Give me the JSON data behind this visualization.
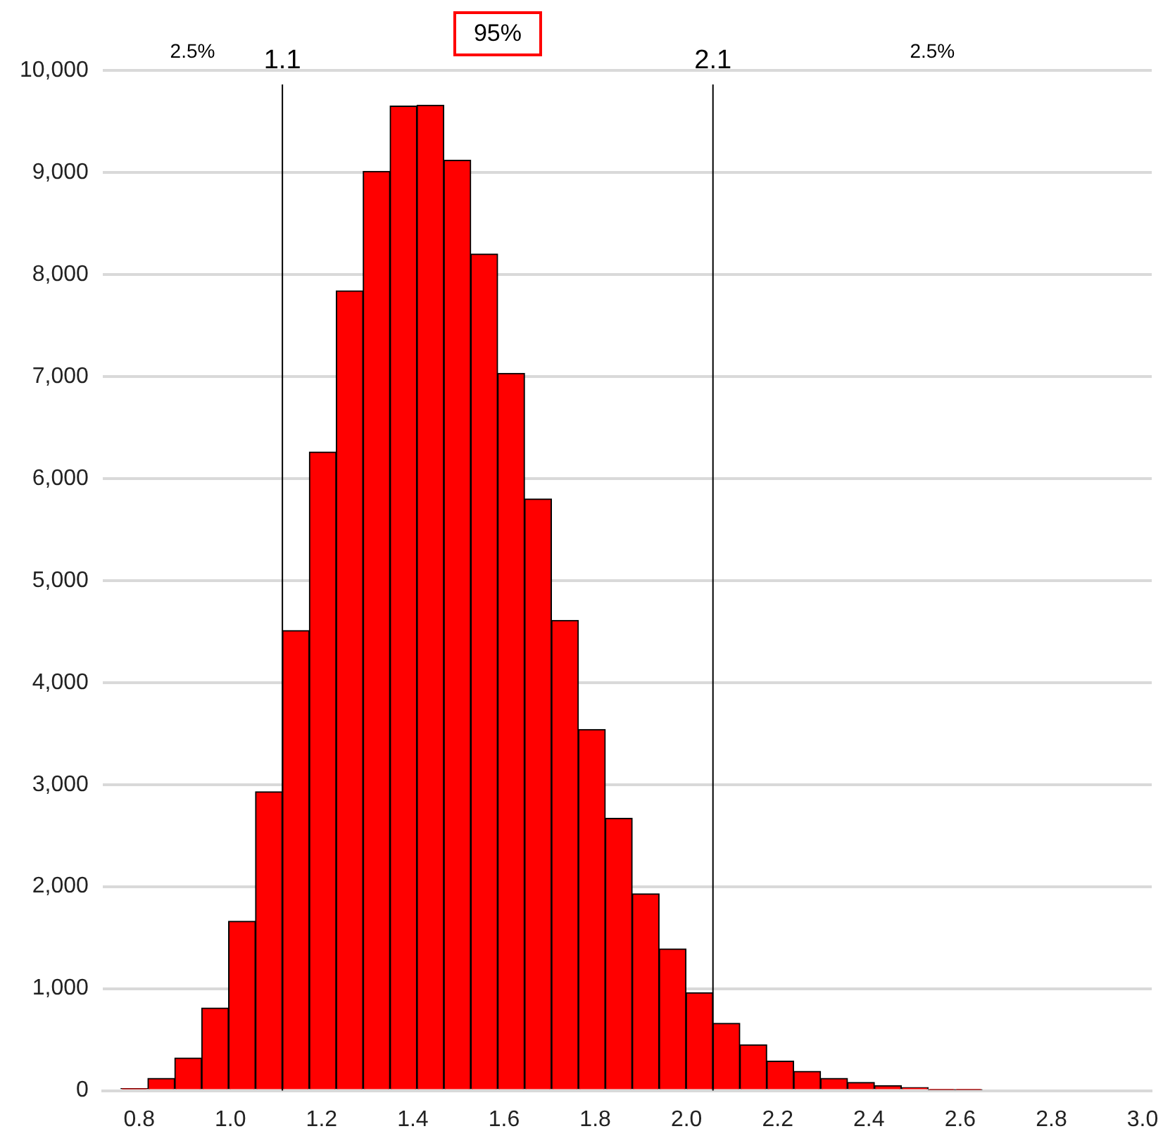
{
  "chart_data": {
    "type": "histogram",
    "color": "#ff0000",
    "bins": [
      0.76,
      0.819,
      0.878,
      0.937,
      0.996,
      1.055,
      1.114,
      1.173,
      1.232,
      1.291,
      1.35,
      1.409,
      1.468,
      1.527,
      1.586,
      1.645,
      1.704,
      1.763,
      1.822,
      1.881,
      1.94,
      1.999,
      2.058,
      2.117,
      2.176,
      2.235,
      2.294,
      2.353,
      2.412,
      2.471,
      2.53,
      2.589,
      2.648
    ],
    "values": [
      20,
      120,
      320,
      810,
      1660,
      2930,
      4510,
      6260,
      7840,
      9010,
      9650,
      9660,
      9120,
      8200,
      7030,
      5800,
      4610,
      3540,
      2670,
      1930,
      1390,
      960,
      660,
      450,
      290,
      190,
      120,
      80,
      50,
      30,
      10,
      10
    ],
    "xlim": [
      0.72,
      3.02
    ],
    "xticks": [
      0.8,
      {
        "value": 1,
        "label": "1.0"
      },
      1.2,
      1.4,
      1.6,
      1.8,
      {
        "value": 2,
        "label": "2.0"
      },
      2.2,
      2.4,
      2.6,
      2.8,
      {
        "value": 3,
        "label": "3.0"
      }
    ],
    "ylim": [
      0,
      10000
    ],
    "yticks": [
      0,
      {
        "value": 1000,
        "label": "1,000"
      },
      {
        "value": 2000,
        "label": "2,000"
      },
      {
        "value": 3000,
        "label": "3,000"
      },
      {
        "value": 4000,
        "label": "4,000"
      },
      {
        "value": 5000,
        "label": "5,000"
      },
      {
        "value": 6000,
        "label": "6,000"
      },
      {
        "value": 7000,
        "label": "7,000"
      },
      {
        "value": 8000,
        "label": "8,000"
      },
      {
        "value": 9000,
        "label": "9,000"
      },
      {
        "value": 10000,
        "label": "10,000"
      }
    ],
    "grid": "y",
    "legend": false,
    "ref_lines": [
      {
        "axis": "x",
        "value": 1.114,
        "label": "1.1",
        "color": "#000000"
      },
      {
        "axis": "x",
        "value": 2.058,
        "label": "2.1",
        "color": "#000000"
      }
    ],
    "annotations": [
      "2.5%",
      "95%",
      "2.5%"
    ]
  }
}
